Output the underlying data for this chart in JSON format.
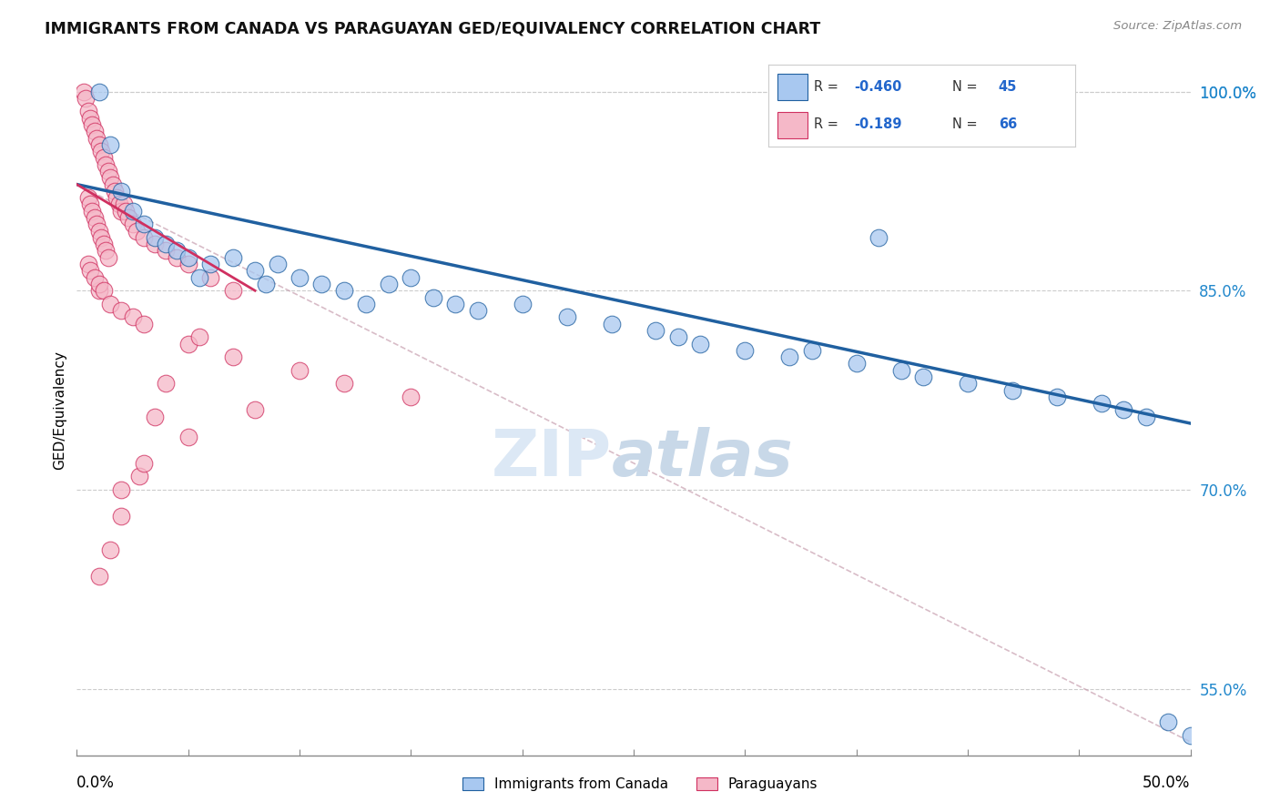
{
  "title": "IMMIGRANTS FROM CANADA VS PARAGUAYAN GED/EQUIVALENCY CORRELATION CHART",
  "source": "Source: ZipAtlas.com",
  "ylabel": "GED/Equivalency",
  "xmin": 0.0,
  "xmax": 50.0,
  "ymin": 50.0,
  "ymax": 102.0,
  "yticks": [
    55.0,
    70.0,
    85.0,
    100.0
  ],
  "ytick_labels": [
    "55.0%",
    "70.0%",
    "85.0%",
    "100.0%"
  ],
  "legend_blue_r": "-0.460",
  "legend_blue_n": "45",
  "legend_pink_r": "-0.189",
  "legend_pink_n": "66",
  "blue_color": "#A8C8F0",
  "blue_line_color": "#2060A0",
  "pink_color": "#F5B8C8",
  "pink_line_color": "#D03060",
  "blue_scatter_x": [
    1.0,
    1.5,
    2.0,
    2.5,
    3.0,
    3.5,
    4.0,
    4.5,
    5.0,
    6.0,
    7.0,
    8.0,
    9.0,
    10.0,
    12.0,
    14.0,
    15.0,
    16.0,
    17.0,
    18.0,
    20.0,
    22.0,
    24.0,
    26.0,
    27.0,
    28.0,
    30.0,
    32.0,
    35.0,
    37.0,
    38.0,
    40.0,
    42.0,
    44.0,
    46.0,
    47.0,
    48.0,
    49.0,
    50.0,
    36.0,
    33.0,
    8.5,
    5.5,
    11.0,
    13.0
  ],
  "blue_scatter_y": [
    100.0,
    96.0,
    92.5,
    91.0,
    90.0,
    89.0,
    88.5,
    88.0,
    87.5,
    87.0,
    87.5,
    86.5,
    87.0,
    86.0,
    85.0,
    85.5,
    86.0,
    84.5,
    84.0,
    83.5,
    84.0,
    83.0,
    82.5,
    82.0,
    81.5,
    81.0,
    80.5,
    80.0,
    79.5,
    79.0,
    78.5,
    78.0,
    77.5,
    77.0,
    76.5,
    76.0,
    75.5,
    52.5,
    51.5,
    89.0,
    80.5,
    85.5,
    86.0,
    85.5,
    84.0
  ],
  "pink_scatter_x": [
    0.3,
    0.4,
    0.5,
    0.6,
    0.7,
    0.8,
    0.9,
    1.0,
    1.1,
    1.2,
    1.3,
    1.4,
    1.5,
    1.6,
    1.7,
    1.8,
    1.9,
    2.0,
    2.1,
    2.2,
    2.3,
    2.5,
    2.7,
    3.0,
    3.5,
    4.0,
    4.5,
    5.0,
    6.0,
    7.0,
    0.5,
    0.6,
    0.7,
    0.8,
    0.9,
    1.0,
    1.1,
    1.2,
    1.3,
    1.4,
    1.0,
    0.5,
    0.6,
    0.8,
    1.0,
    1.2,
    1.5,
    2.0,
    2.5,
    3.0,
    5.0,
    7.0,
    10.0,
    12.0,
    15.0,
    5.5,
    4.0,
    3.5,
    2.8,
    2.0,
    1.5,
    1.0,
    2.0,
    3.0,
    5.0,
    8.0
  ],
  "pink_scatter_y": [
    100.0,
    99.5,
    98.5,
    98.0,
    97.5,
    97.0,
    96.5,
    96.0,
    95.5,
    95.0,
    94.5,
    94.0,
    93.5,
    93.0,
    92.5,
    92.0,
    91.5,
    91.0,
    91.5,
    91.0,
    90.5,
    90.0,
    89.5,
    89.0,
    88.5,
    88.0,
    87.5,
    87.0,
    86.0,
    85.0,
    92.0,
    91.5,
    91.0,
    90.5,
    90.0,
    89.5,
    89.0,
    88.5,
    88.0,
    87.5,
    85.0,
    87.0,
    86.5,
    86.0,
    85.5,
    85.0,
    84.0,
    83.5,
    83.0,
    82.5,
    81.0,
    80.0,
    79.0,
    78.0,
    77.0,
    81.5,
    78.0,
    75.5,
    71.0,
    68.0,
    65.5,
    63.5,
    70.0,
    72.0,
    74.0,
    76.0
  ]
}
